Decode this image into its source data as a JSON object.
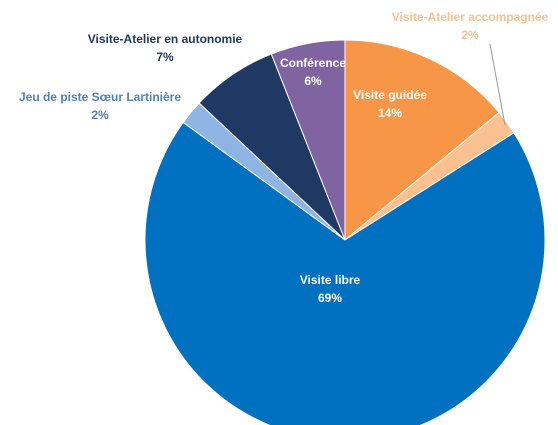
{
  "chart_data": {
    "type": "pie",
    "categories": [
      "Visite guidée",
      "Visite-Atelier accompagnée",
      "Visite libre",
      "Jeu de piste Sœur Lartinière",
      "Visite-Atelier en autonomie",
      "Conférence"
    ],
    "values": [
      14,
      2,
      69,
      2,
      7,
      6
    ],
    "value_labels": [
      "14%",
      "2%",
      "69%",
      "2%",
      "7%",
      "6%"
    ],
    "colors": [
      "#f79646",
      "#fac090",
      "#0070c0",
      "#8eb4e3",
      "#1f3864",
      "#8064a2"
    ]
  }
}
